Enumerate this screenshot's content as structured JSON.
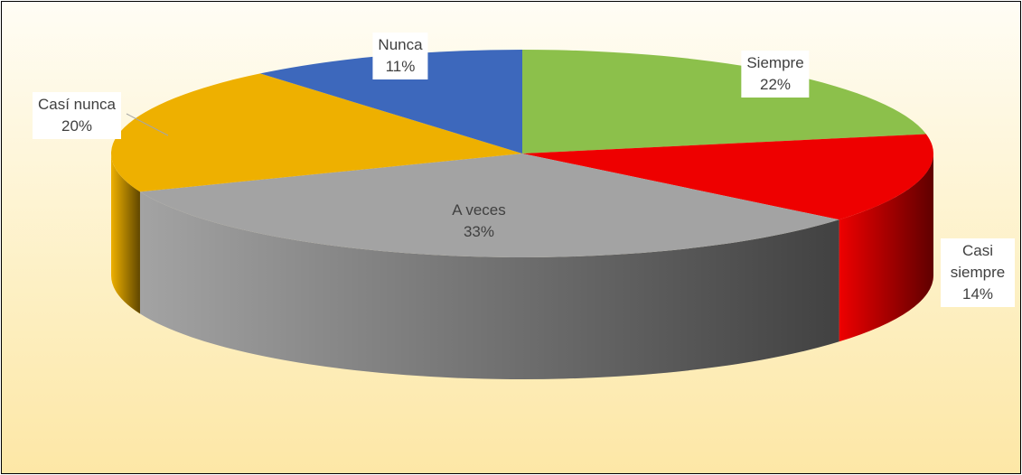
{
  "chart_data": {
    "type": "pie",
    "categories": [
      "Siempre",
      "Casi siempre",
      "A veces",
      "Casí nunca",
      "Nunca"
    ],
    "values": [
      22,
      14,
      33,
      20,
      11
    ],
    "value_labels": [
      "22%",
      "14%",
      "33%",
      "20%",
      "11%"
    ],
    "colors": [
      "#8cc04b",
      "#ee0000",
      "#a3a3a3",
      "#eeb000",
      "#3d68bc"
    ]
  }
}
